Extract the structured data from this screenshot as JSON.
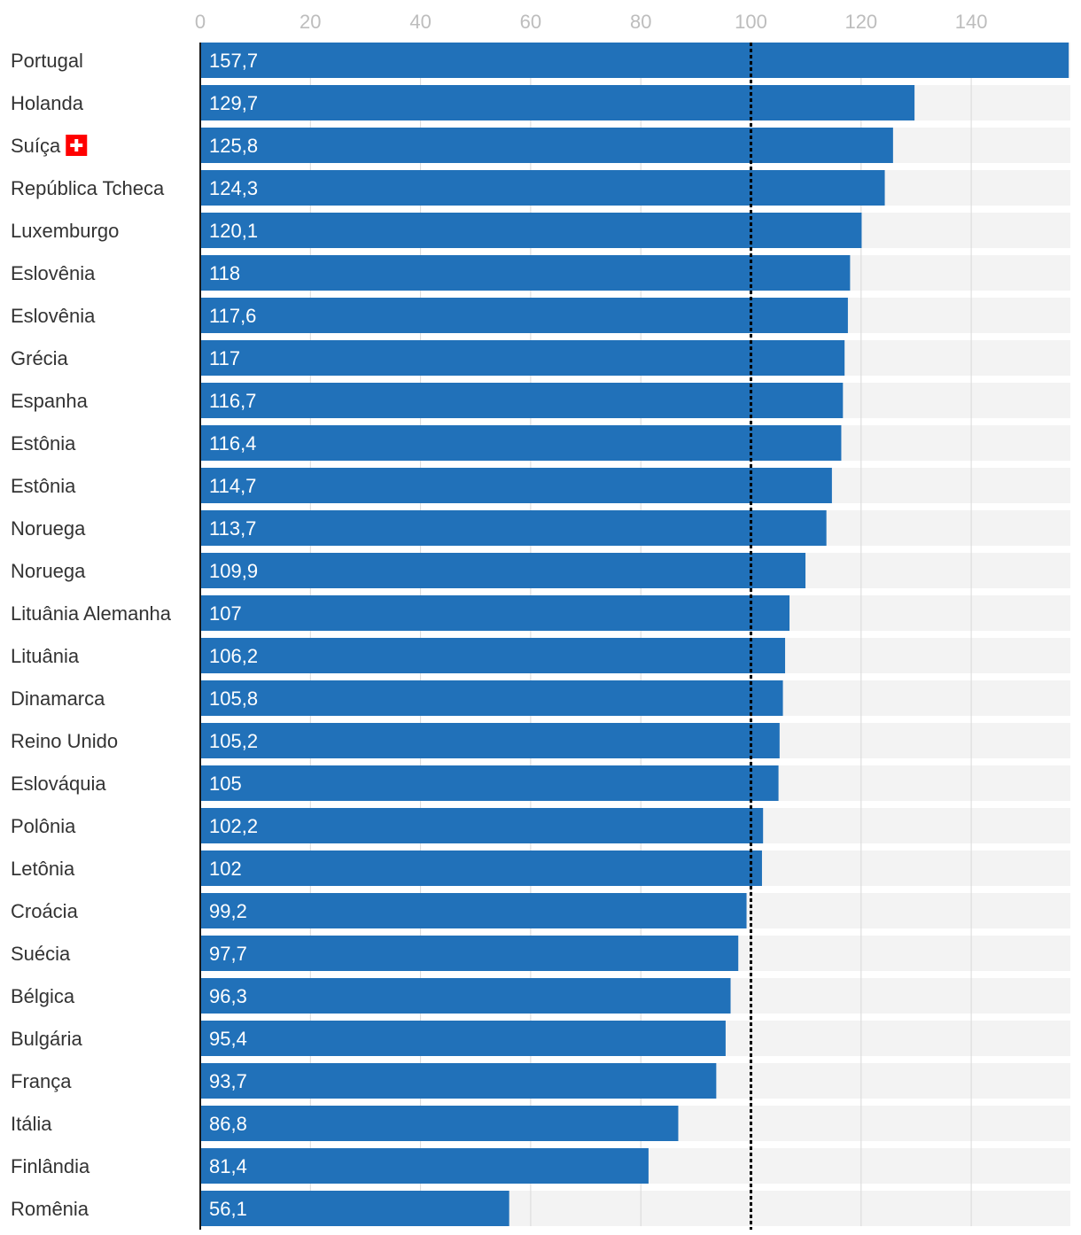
{
  "chart_data": {
    "type": "bar",
    "orientation": "horizontal",
    "title": "",
    "xlabel": "",
    "ylabel": "",
    "xlim": [
      0,
      158
    ],
    "ticks": [
      0,
      20,
      40,
      60,
      80,
      100,
      120,
      140
    ],
    "reference_line": 100,
    "bar_color": "#2171b9",
    "background_band_color": "#f3f3f3",
    "grid_color": "#d9d9d9",
    "categories": [
      "Portugal",
      "Holanda",
      "Suíça",
      "República Tcheca",
      "Luxemburgo",
      "Eslovênia",
      "Eslovênia",
      "Grécia",
      "Espanha",
      "Estônia",
      "Estônia",
      "Noruega",
      "Noruega",
      "Lituânia Alemanha",
      "Lituânia",
      "Dinamarca",
      "Reino Unido",
      "Eslováquia",
      "Polônia",
      "Letônia",
      "Croácia",
      "Suécia",
      "Bélgica",
      "Bulgária",
      "França",
      "Itália",
      "Finlândia",
      "Romênia"
    ],
    "values": [
      157.7,
      129.7,
      125.8,
      124.3,
      120.1,
      118,
      117.6,
      117,
      116.7,
      116.4,
      114.7,
      113.7,
      109.9,
      107,
      106.2,
      105.8,
      105.2,
      105,
      102.2,
      102,
      99.2,
      97.7,
      96.3,
      95.4,
      93.7,
      86.8,
      81.4,
      56.1
    ],
    "value_labels": [
      "157,7",
      "129,7",
      "125,8",
      "124,3",
      "120,1",
      "118",
      "117,6",
      "117",
      "116,7",
      "116,4",
      "114,7",
      "113,7",
      "109,9",
      "107",
      "106,2",
      "105,8",
      "105,2",
      "105",
      "102,2",
      "102",
      "99,2",
      "97,7",
      "96,3",
      "95,4",
      "93,7",
      "86,8",
      "81,4",
      "56,1"
    ],
    "flag_icon": {
      "category": "Suíça",
      "icon": "swiss-flag-icon",
      "color": "#ff0000"
    }
  }
}
